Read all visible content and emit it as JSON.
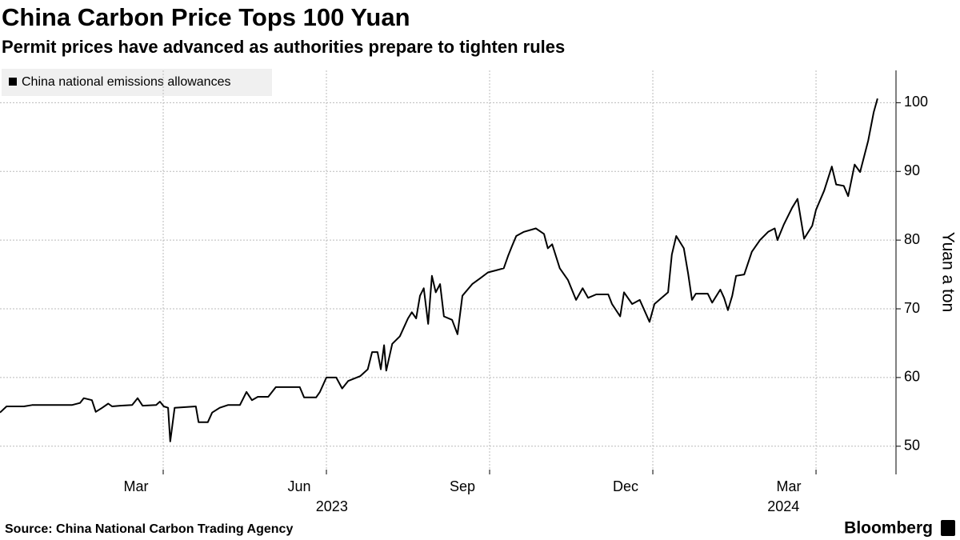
{
  "chart_data": {
    "type": "line",
    "title": "China Carbon Price Tops 100 Yuan",
    "subtitle": "Permit prices have advanced as authorities prepare to tighten rules",
    "ylabel": "Yuan a ton",
    "source": "Source: China National Carbon Trading Agency",
    "brand": "Bloomberg",
    "xlim": [
      0,
      16.47
    ],
    "xticks": [
      {
        "value": 2.5,
        "label": "Mar"
      },
      {
        "value": 5.5,
        "label": "Jun"
      },
      {
        "value": 8.5,
        "label": "Sep"
      },
      {
        "value": 11.5,
        "label": "Dec"
      },
      {
        "value": 14.5,
        "label": "Mar"
      }
    ],
    "year_labels": [
      {
        "value": 6.1,
        "label": "2023"
      },
      {
        "value": 14.4,
        "label": "2024"
      }
    ],
    "xgrid": [
      3,
      6,
      9,
      12,
      15
    ],
    "ylim": [
      45.9,
      104.7
    ],
    "yticks": [
      50,
      60,
      70,
      80,
      90,
      100
    ],
    "grid": true,
    "series": [
      {
        "name": "China national emissions allowances",
        "color": "#000000",
        "x": [
          0,
          0.12,
          0.44,
          0.59,
          1.32,
          1.47,
          1.54,
          1.69,
          1.76,
          1.88,
          1.99,
          2.06,
          2.21,
          2.43,
          2.53,
          2.62,
          2.87,
          2.94,
          3.01,
          3.09,
          3.13,
          3.21,
          3.6,
          3.65,
          3.82,
          3.9,
          4.04,
          4.19,
          4.41,
          4.53,
          4.63,
          4.74,
          4.93,
          5.07,
          5.51,
          5.59,
          5.81,
          5.88,
          6.0,
          6.18,
          6.29,
          6.4,
          6.62,
          6.76,
          6.84,
          6.94,
          7.0,
          7.06,
          7.1,
          7.21,
          7.35,
          7.5,
          7.57,
          7.65,
          7.72,
          7.79,
          7.87,
          7.94,
          8.01,
          8.09,
          8.16,
          8.31,
          8.41,
          8.5,
          8.68,
          8.82,
          8.97,
          9.12,
          9.26,
          9.34,
          9.41,
          9.49,
          9.63,
          9.85,
          10.0,
          10.07,
          10.15,
          10.29,
          10.44,
          10.59,
          10.71,
          10.81,
          10.96,
          11.18,
          11.25,
          11.4,
          11.47,
          11.62,
          11.76,
          11.94,
          12.03,
          12.28,
          12.35,
          12.43,
          12.57,
          12.65,
          12.72,
          12.79,
          13.01,
          13.09,
          13.24,
          13.31,
          13.38,
          13.46,
          13.53,
          13.68,
          13.82,
          13.97,
          14.12,
          14.24,
          14.29,
          14.41,
          14.56,
          14.66,
          14.78,
          14.93,
          15.0,
          15.15,
          15.29,
          15.37,
          15.51,
          15.59,
          15.71,
          15.81,
          15.96,
          16.06,
          16.13
        ],
        "values": [
          54.9,
          55.8,
          55.8,
          56.0,
          56.0,
          56.3,
          57.0,
          56.7,
          55.0,
          55.6,
          56.2,
          55.8,
          55.9,
          56.0,
          57.0,
          55.9,
          56.0,
          56.5,
          55.8,
          55.6,
          50.7,
          55.6,
          55.8,
          53.5,
          53.5,
          54.9,
          55.6,
          56.0,
          56.0,
          57.9,
          56.7,
          57.2,
          57.2,
          58.6,
          58.6,
          57.1,
          57.1,
          57.9,
          60.0,
          60.0,
          58.4,
          59.5,
          60.2,
          61.2,
          63.7,
          63.7,
          61.2,
          64.7,
          61.0,
          64.9,
          66.0,
          68.6,
          69.5,
          68.6,
          71.9,
          73.0,
          67.8,
          74.8,
          72.4,
          73.6,
          68.9,
          68.4,
          66.3,
          71.9,
          73.6,
          74.4,
          75.3,
          75.6,
          75.9,
          77.7,
          79.1,
          80.6,
          81.2,
          81.7,
          80.9,
          78.8,
          79.4,
          75.9,
          74.2,
          71.3,
          73.0,
          71.6,
          72.1,
          72.1,
          70.7,
          68.9,
          72.4,
          70.7,
          71.3,
          68.1,
          70.7,
          72.4,
          77.9,
          80.6,
          78.8,
          75.1,
          71.3,
          72.2,
          72.2,
          70.9,
          72.8,
          71.6,
          69.8,
          71.9,
          74.8,
          75.0,
          78.3,
          80.0,
          81.2,
          81.7,
          80.0,
          82.3,
          84.7,
          86.0,
          80.2,
          82.1,
          84.4,
          87.2,
          90.7,
          88.1,
          87.9,
          86.4,
          91.0,
          89.9,
          94.5,
          98.6,
          100.6
        ]
      }
    ]
  }
}
